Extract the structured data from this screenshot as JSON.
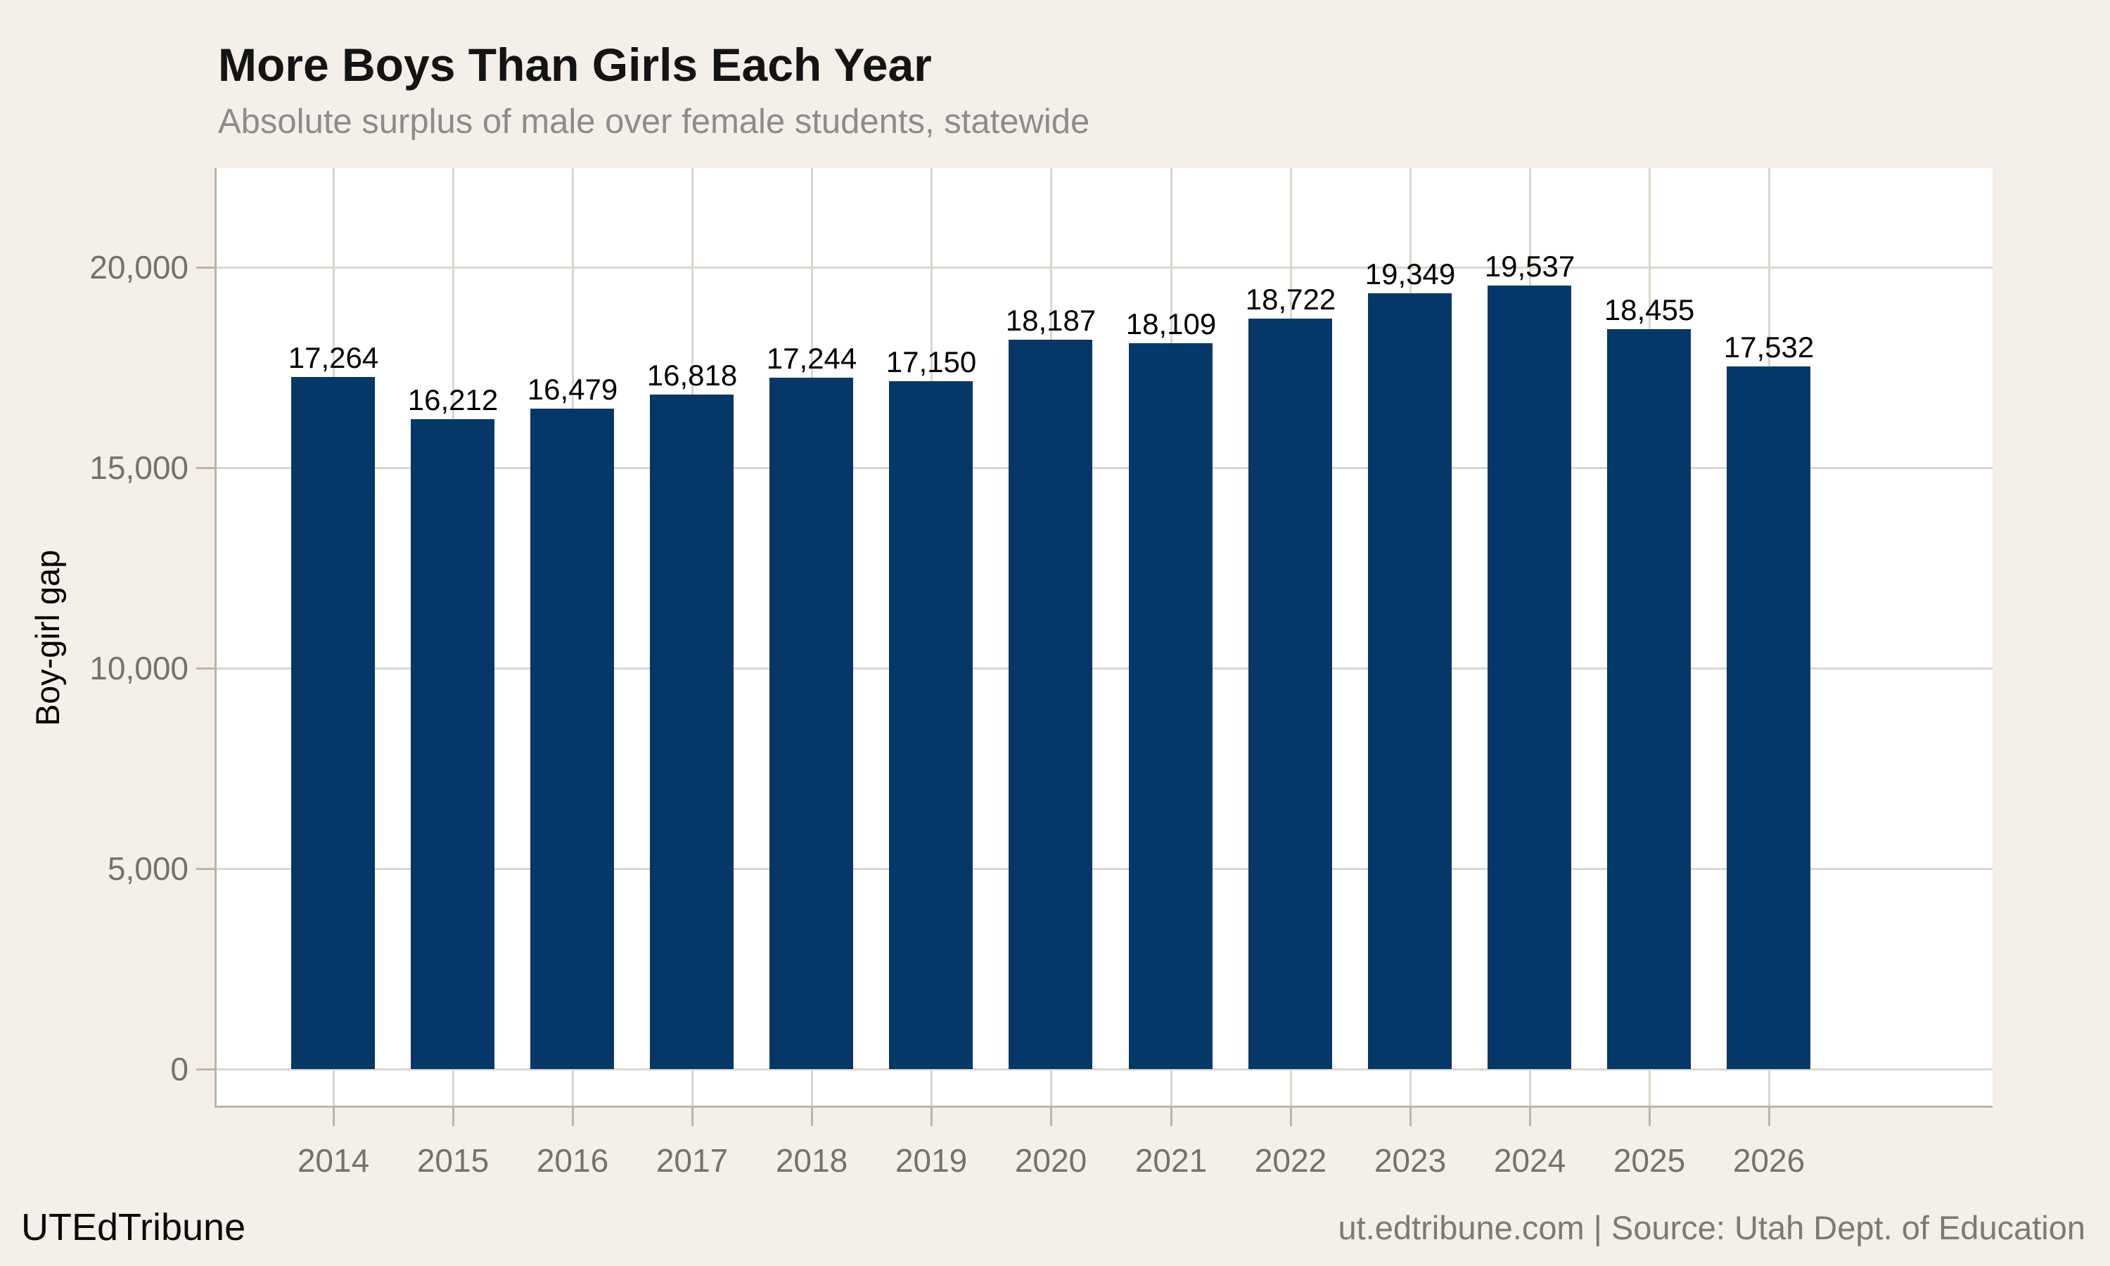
{
  "footer": {
    "brand": "UTEdTribune",
    "attribution": "ut.edtribune.com | Source: Utah Dept. of Education"
  },
  "chart_data": {
    "type": "bar",
    "title": "More Boys Than Girls Each Year",
    "subtitle": "Absolute surplus of male over female students, statewide",
    "categories": [
      "2014",
      "2015",
      "2016",
      "2017",
      "2018",
      "2019",
      "2020",
      "2021",
      "2022",
      "2023",
      "2024",
      "2025",
      "2026"
    ],
    "values": [
      17264,
      16212,
      16479,
      16818,
      17244,
      17150,
      18187,
      18109,
      18722,
      19349,
      19537,
      18455,
      17532
    ],
    "value_labels": [
      "17,264",
      "16,212",
      "16,479",
      "16,818",
      "17,244",
      "17,150",
      "18,187",
      "18,109",
      "18,722",
      "19,349",
      "19,537",
      "18,455",
      "17,532"
    ],
    "xlabel": "",
    "ylabel": "Boy-girl gap",
    "ylim": [
      0,
      22400
    ],
    "yticks": [
      0,
      5000,
      10000,
      15000,
      20000
    ],
    "ytick_labels": [
      "0",
      "5,000",
      "10,000",
      "15,000",
      "20,000"
    ],
    "legend": "none",
    "grid": "both",
    "colors": {
      "bar": "#053869",
      "background": "#f4f0e9",
      "panel": "#ffffff",
      "gridline": "#dcd6cb",
      "axis": "#bcb5a8",
      "tick_text": "#75716b",
      "title": "#141414",
      "subtitle": "#8c8c8c",
      "value_label": "#000000"
    }
  }
}
